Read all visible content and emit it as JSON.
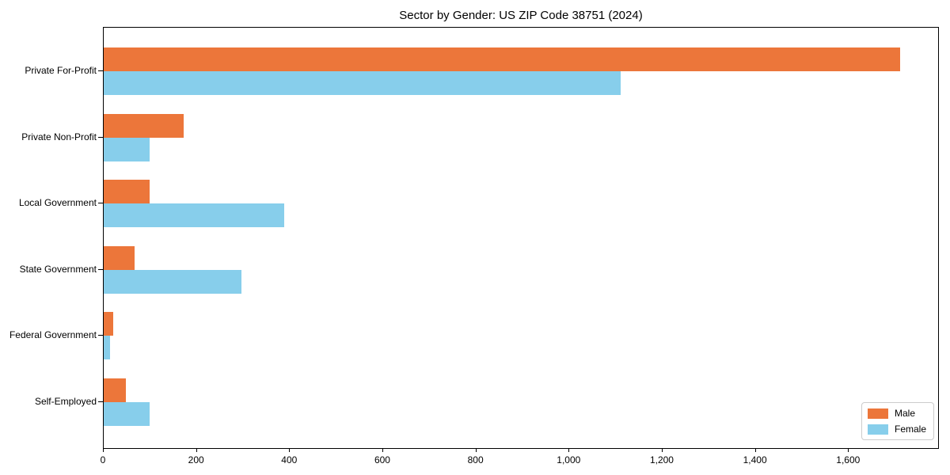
{
  "title": "Sector by Gender: US ZIP Code 38751 (2024)",
  "chart_data": {
    "type": "bar",
    "orientation": "horizontal",
    "title": "Sector by Gender: US ZIP Code 38751 (2024)",
    "categories": [
      "Private For-Profit",
      "Private Non-Profit",
      "Local Government",
      "State Government",
      "Federal Government",
      "Self-Employed"
    ],
    "series": [
      {
        "name": "Male",
        "color": "#ec763a",
        "values": [
          1710,
          172,
          99,
          66,
          20,
          47
        ]
      },
      {
        "name": "Female",
        "color": "#87ceeb",
        "values": [
          1110,
          98,
          387,
          295,
          13,
          98
        ]
      }
    ],
    "xlabel": "",
    "ylabel": "",
    "xlim": [
      0,
      1795
    ],
    "x_ticks": [
      0,
      200,
      400,
      600,
      800,
      1000,
      1200,
      1400,
      1600
    ],
    "x_tick_labels": [
      "0",
      "200",
      "400",
      "600",
      "800",
      "1,000",
      "1,200",
      "1,400",
      "1,600"
    ],
    "grid": false,
    "legend_position": "lower right"
  },
  "legend": {
    "items": [
      {
        "label": "Male",
        "color": "#ec763a"
      },
      {
        "label": "Female",
        "color": "#87ceeb"
      }
    ]
  },
  "colors": {
    "male": "#ec763a",
    "female": "#87ceeb",
    "spine": "#000000",
    "legend_border": "#cccccc"
  }
}
